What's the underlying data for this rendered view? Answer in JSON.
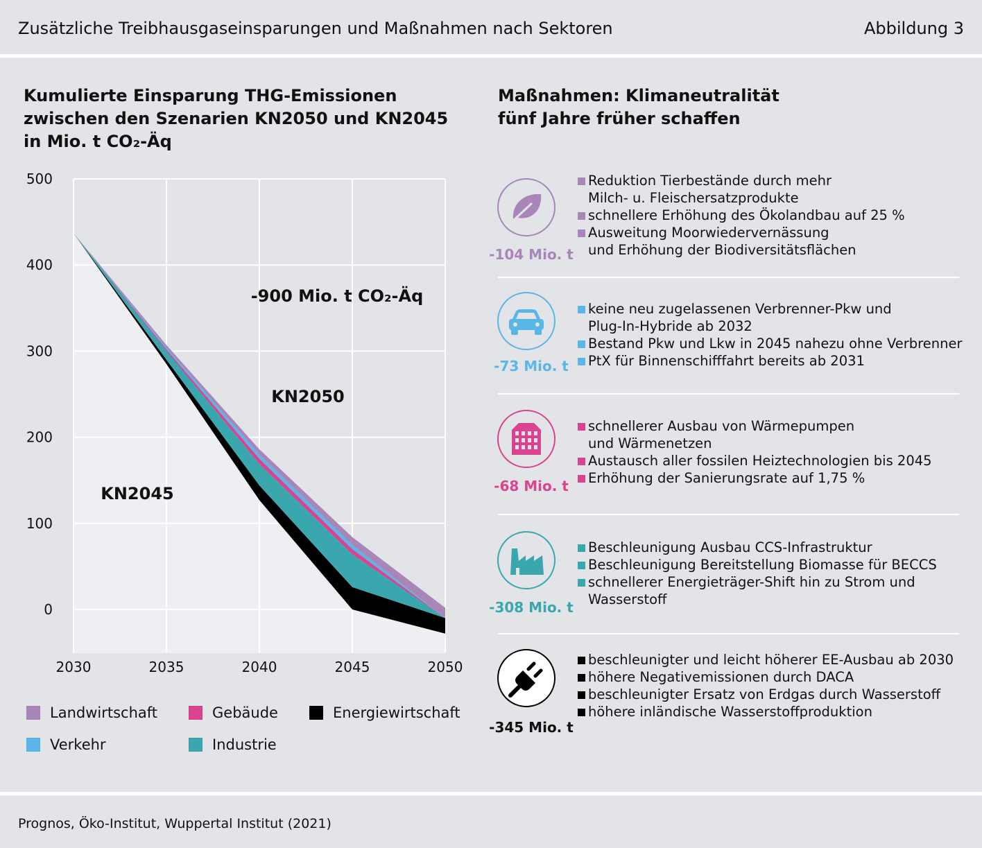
{
  "header": {
    "title": "Zusätzliche Treibhausgaseinsparungen und Maßnahmen nach Sektoren",
    "figure": "Abbildung 3"
  },
  "left_heading": [
    "Kumulierte Einsparung THG-Emissionen",
    "zwischen den Szenarien KN2050 und KN2045",
    "in Mio. t CO₂-Äq"
  ],
  "right_heading": [
    "Maßnahmen: Klimaneutralität",
    "fünf Jahre früher schaffen"
  ],
  "chart_data": {
    "type": "area",
    "x": [
      2030,
      2035,
      2040,
      2045,
      2050
    ],
    "xlim": [
      2030,
      2050
    ],
    "ylim": [
      -50,
      500
    ],
    "yticks": [
      0,
      100,
      200,
      300,
      400,
      500
    ],
    "grid": true,
    "kn2045": [
      437,
      285,
      127,
      0,
      -28
    ],
    "series": [
      {
        "name": "Energiewirtschaft",
        "color": "#000000",
        "values": [
          0,
          5,
          17,
          26,
          18
        ]
      },
      {
        "name": "Industrie",
        "color": "#3aa7ae",
        "values": [
          0,
          10,
          25,
          38,
          0
        ]
      },
      {
        "name": "Gebäude",
        "color": "#d9438f",
        "values": [
          0,
          2,
          6,
          6,
          0
        ]
      },
      {
        "name": "Verkehr",
        "color": "#5bb6e8",
        "values": [
          0,
          2,
          5,
          5,
          0
        ]
      },
      {
        "name": "Landwirtschaft",
        "color": "#a886b7",
        "values": [
          0,
          3,
          6,
          9,
          12
        ]
      }
    ],
    "annotations": {
      "total": "-900 Mio. t CO₂-Äq",
      "kn2050": "KN2050",
      "kn2045": "KN2045"
    }
  },
  "legend": [
    {
      "label": "Landwirtschaft",
      "color": "#a886b7"
    },
    {
      "label": "Gebäude",
      "color": "#d9438f"
    },
    {
      "label": "Energiewirtschaft",
      "color": "#000000"
    },
    {
      "label": "Verkehr",
      "color": "#5bb6e8"
    },
    {
      "label": "Industrie",
      "color": "#3aa7ae"
    }
  ],
  "measures": [
    {
      "icon": "leaf-icon",
      "color": "#a886b7",
      "total": "-104 Mio. t",
      "items": [
        "Reduktion Tierbestände durch mehr",
        "Milch- u. Fleischersatzprodukte",
        "schnellere Erhöhung des Ökolandbau auf 25 %",
        "Ausweitung Moorwiedervernässung",
        "und Erhöhung der Biodiversitätsflächen"
      ],
      "bullets": [
        true,
        false,
        true,
        true,
        false
      ]
    },
    {
      "icon": "car-icon",
      "color": "#5bb6e8",
      "total": "-73 Mio. t",
      "items": [
        "keine neu zugelassenen Verbrenner-Pkw und",
        "Plug-In-Hybride ab 2032",
        "Bestand Pkw und Lkw in 2045 nahezu ohne Verbrenner",
        "PtX für Binnenschifffahrt bereits ab 2031"
      ],
      "bullets": [
        true,
        false,
        true,
        true
      ]
    },
    {
      "icon": "building-icon",
      "color": "#d9438f",
      "total": "-68 Mio. t",
      "items": [
        "schnellerer Ausbau von Wärmepumpen",
        "und Wärmenetzen",
        "Austausch aller fossilen Heiztechnologien bis 2045",
        "Erhöhung der Sanierungsrate auf 1,75 %"
      ],
      "bullets": [
        true,
        false,
        true,
        true
      ]
    },
    {
      "icon": "factory-icon",
      "color": "#3aa7ae",
      "total": "-308 Mio. t",
      "items": [
        "Beschleunigung Ausbau CCS-Infrastruktur",
        "Beschleunigung Bereitstellung Biomasse für BECCS",
        "schnellerer Energieträger-Shift hin zu Strom und",
        "Wasserstoff"
      ],
      "bullets": [
        true,
        true,
        true,
        false
      ]
    },
    {
      "icon": "plug-icon",
      "color": "#000000",
      "total": "-345 Mio. t",
      "items": [
        "beschleunigter und leicht höherer EE-Ausbau ab 2030",
        "höhere Negativemissionen durch DACA",
        "beschleunigter Ersatz von Erdgas durch Wasserstoff",
        "höhere inländische Wasserstoffproduktion"
      ],
      "bullets": [
        true,
        true,
        true,
        true
      ]
    }
  ],
  "source": "Prognos, Öko-Institut, Wuppertal Institut (2021)"
}
